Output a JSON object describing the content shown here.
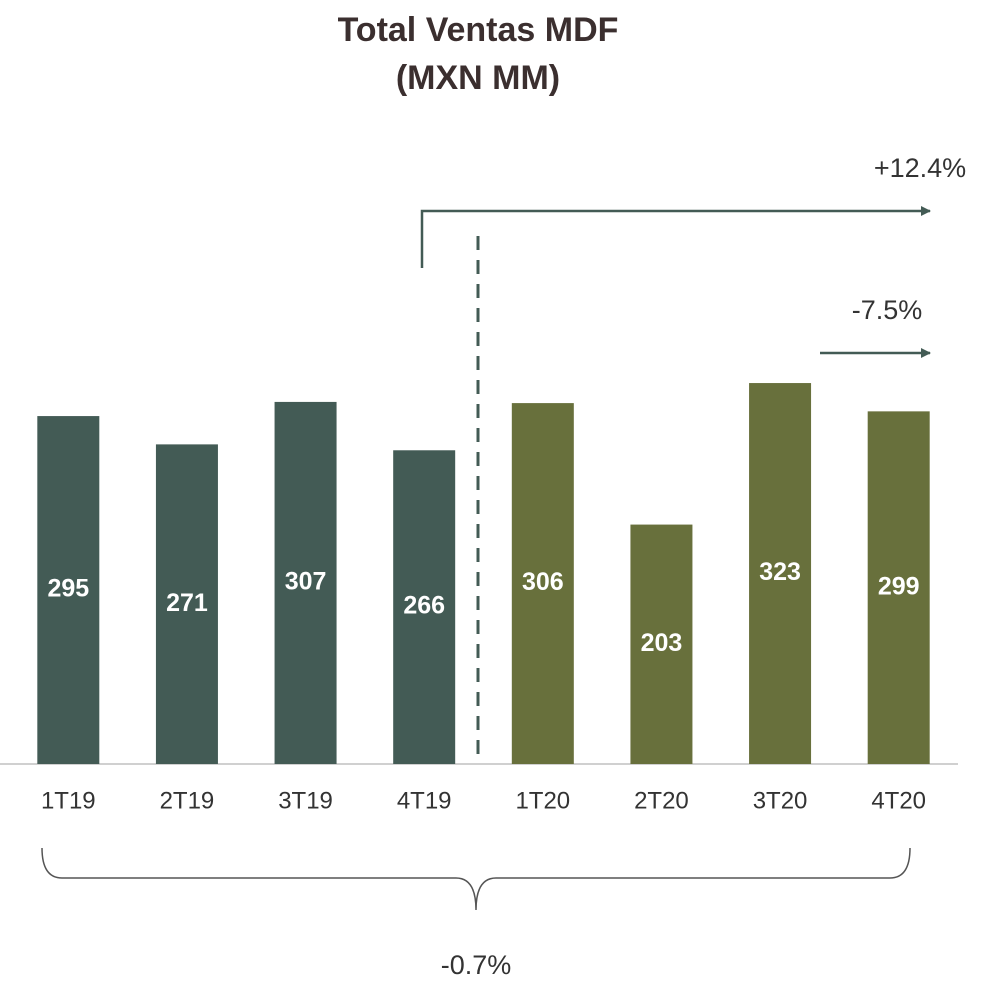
{
  "chart_data": {
    "type": "bar",
    "title": "Total Ventas MDF",
    "subtitle": "(MXN MM)",
    "categories": [
      "1T19",
      "2T19",
      "3T19",
      "4T19",
      "1T20",
      "2T20",
      "3T20",
      "4T20"
    ],
    "values": [
      295,
      271,
      307,
      266,
      306,
      203,
      323,
      299
    ],
    "colors": [
      "#435b55",
      "#435b55",
      "#435b55",
      "#435b55",
      "#68703c",
      "#68703c",
      "#68703c",
      "#68703c"
    ],
    "ylim": [
      0,
      340
    ],
    "annotations": [
      "+12.4%",
      "-7.5%",
      "-0.7%"
    ]
  }
}
